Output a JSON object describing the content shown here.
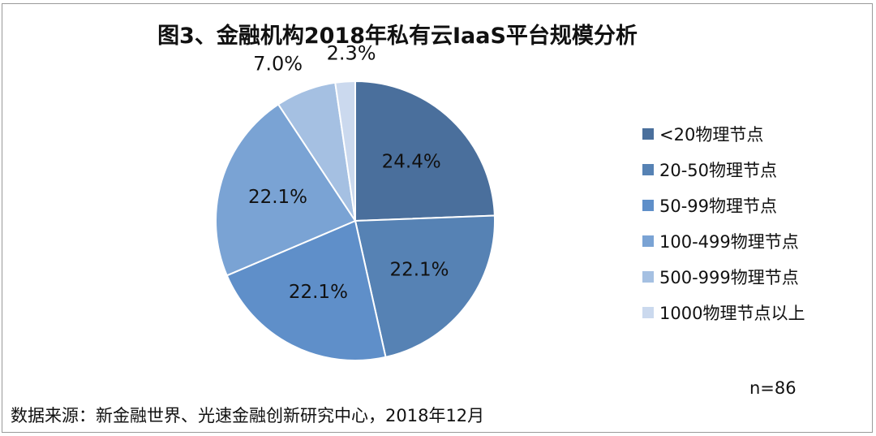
{
  "chart_data": {
    "type": "pie",
    "title": "图3、金融机构2018年私有云IaaS平台规模分析",
    "legend_position": "right",
    "categories": [
      "<20物理节点",
      "20-50物理节点",
      "50-99物理节点",
      "100-499物理节点",
      "500-999物理节点",
      "1000物理节点以上"
    ],
    "values": [
      24.4,
      22.1,
      22.1,
      22.1,
      7.0,
      2.3
    ],
    "value_labels": [
      "24.4%",
      "22.1%",
      "22.1%",
      "22.1%",
      "7.0%",
      "2.3%"
    ],
    "colors": [
      "#4a6f9c",
      "#5682b4",
      "#5f8fc9",
      "#7aa3d4",
      "#a5c0e2",
      "#cbd9ee"
    ]
  },
  "note": "n=86",
  "source": "数据来源：新金融世界、光速金融创新研究中心，2018年12月"
}
